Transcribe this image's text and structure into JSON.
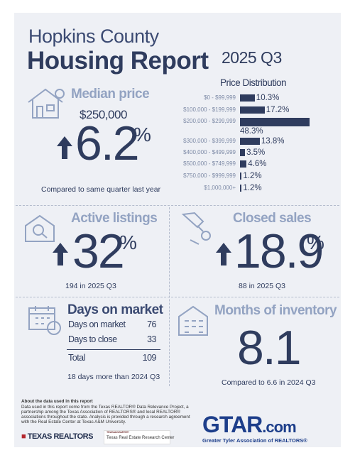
{
  "header": {
    "title": "Hopkins County",
    "subtitle": "Housing Report",
    "period": "2025 Q3"
  },
  "median": {
    "heading": "Median price",
    "price": "$250,000",
    "change": "6.2",
    "unit": "%",
    "note": "Compared to same quarter last year"
  },
  "price_distribution": {
    "title": "Price Distribution",
    "categories": [
      "$0 - $99,999",
      "$100,000 - $199,999",
      "$200,000 - $299,999",
      "$300,000 - $399,999",
      "$400,000 - $499,999",
      "$500,000 - $749,999",
      "$750,000 - $999,999",
      "$1,000,000+"
    ],
    "values": [
      10.3,
      17.2,
      48.3,
      13.8,
      3.5,
      4.6,
      1.2,
      1.2
    ],
    "value_labels": [
      "10.3%",
      "17.2%",
      "48.3%",
      "13.8%",
      "3.5%",
      "4.6%",
      "1.2%",
      "1.2%"
    ],
    "color": "#2f3c5e",
    "xlim": [
      0,
      50
    ]
  },
  "active": {
    "heading": "Active listings",
    "change": "32",
    "unit": "%",
    "note": "194 in 2025 Q3"
  },
  "closed": {
    "heading": "Closed sales",
    "change": "18.9",
    "unit": "%",
    "note": "88 in 2025 Q3"
  },
  "days": {
    "heading": "Days on market",
    "rows": [
      [
        "Days on market",
        "76"
      ],
      [
        "Days to close",
        "33"
      ]
    ],
    "total": [
      "Total",
      "109"
    ],
    "note": "18 days more than 2024 Q3"
  },
  "inventory": {
    "heading": "Months of inventory",
    "value": "8.1",
    "note": "Compared to 6.6 in 2024 Q3"
  },
  "footer": {
    "about_title": "About the data used in this report",
    "about_lines": [
      "Data used in this report come from the Texas REALTOR® Data Relevance Project, a",
      "partnership among the Texas Association of REALTORS® and local REALTOR®",
      "associations throughout the state. Analysis is provided through a research agreement",
      "with the Real Estate Center at Texas A&M University."
    ],
    "texas_realtors": "TEXAS REALTORS",
    "tamu": "TEXAS A&M UNIVERSITY",
    "trerc": "Texas Real Estate Research Center",
    "gtar": "GTAR",
    "gtar_suffix": ".com",
    "tagline": "Greater Tyler Association of REALTORS®"
  }
}
